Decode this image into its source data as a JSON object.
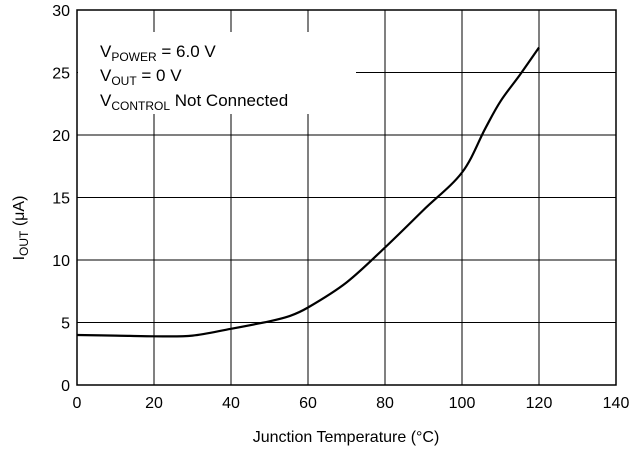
{
  "chart_data": {
    "type": "line",
    "title": "",
    "xlabel": "Junction Temperature (°C)",
    "ylabel_main": "I",
    "ylabel_sub": "OUT",
    "ylabel_rest": " (μA)",
    "xlim": [
      0,
      140
    ],
    "ylim": [
      0,
      30
    ],
    "xticks": [
      "0",
      "20",
      "40",
      "60",
      "80",
      "100",
      "120",
      "140"
    ],
    "yticks": [
      "0",
      "5",
      "10",
      "15",
      "20",
      "25",
      "30"
    ],
    "grid": true,
    "legend": "none",
    "annotations": [
      {
        "main": "V",
        "sub": "POWER",
        "rest": " = 6.0 V"
      },
      {
        "main": "V",
        "sub": "OUT",
        "rest": " = 0 V"
      },
      {
        "main": "V",
        "sub": "CONTROL",
        "rest": " Not Connected"
      }
    ],
    "series": [
      {
        "x": [
          0,
          10,
          20,
          30,
          40,
          50,
          55,
          60,
          70,
          80,
          90,
          100,
          106,
          110,
          115,
          120
        ],
        "y": [
          4.0,
          3.95,
          3.9,
          3.95,
          4.5,
          5.1,
          5.5,
          6.2,
          8.2,
          11.0,
          14.0,
          17.0,
          20.5,
          22.7,
          24.8,
          27.0
        ]
      }
    ],
    "colors": {
      "line": "#000000",
      "grid": "#000000",
      "background": "#ffffff"
    }
  }
}
